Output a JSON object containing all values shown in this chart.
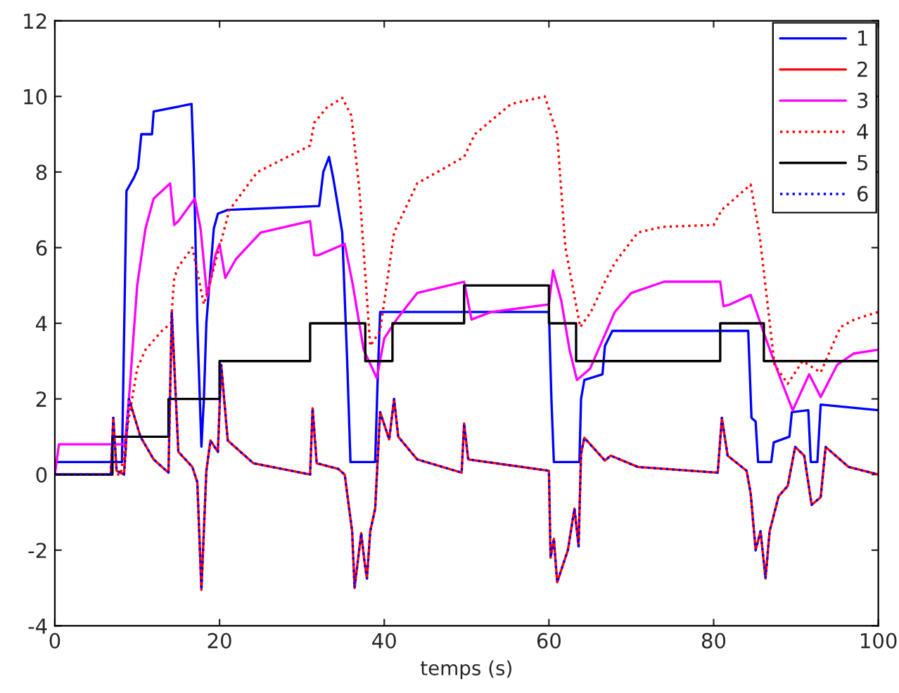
{
  "chart_data": {
    "type": "line",
    "xlabel": "temps (s)",
    "xlim": [
      0,
      100
    ],
    "xticks": [
      0,
      20,
      40,
      60,
      80,
      100
    ],
    "ylim": [
      -4,
      12
    ],
    "yticks": [
      -4,
      -2,
      0,
      2,
      4,
      6,
      8,
      10,
      12
    ],
    "grid": false,
    "legend": "top right",
    "series": [
      {
        "name": "1",
        "color": "#0000ff",
        "line_style": "solid",
        "x": [
          0,
          8.15,
          8.7,
          9.6,
          10.1,
          10.5,
          11.8,
          12.0,
          16.6,
          16.9,
          17.3,
          17.8,
          18.1,
          18.4,
          19.3,
          19.8,
          21,
          32.1,
          32.6,
          33.3,
          33.8,
          34.3,
          34.9,
          35.5,
          35.9,
          38.9,
          39.2,
          39.5,
          60,
          60.3,
          60.6,
          63.7,
          63.9,
          64.3,
          66.5,
          66.8,
          67.7,
          84.2,
          84.6,
          85.1,
          85.4,
          87.0,
          87.3,
          89.2,
          89.5,
          91.5,
          91.8,
          92.6,
          93.0,
          100
        ],
        "values": [
          0.33,
          0.33,
          7.5,
          7.85,
          8.1,
          9.0,
          9.0,
          9.6,
          9.8,
          8.0,
          4.0,
          0.74,
          2.0,
          4.0,
          6.5,
          6.9,
          7.0,
          7.1,
          8.0,
          8.4,
          7.85,
          7.2,
          6.4,
          3.0,
          0.33,
          0.33,
          2.5,
          4.3,
          4.3,
          2.0,
          0.33,
          0.33,
          2.0,
          2.5,
          2.65,
          3.4,
          3.8,
          3.8,
          1.5,
          1.4,
          0.33,
          0.33,
          0.85,
          1.0,
          1.65,
          1.7,
          0.33,
          0.33,
          1.85,
          1.7
        ]
      },
      {
        "name": "2",
        "color": "#ff0000",
        "line_style": "solid",
        "x": [
          0,
          6.8,
          7.1,
          7.5,
          8.4,
          9.0,
          10.4,
          12,
          13.8,
          14.2,
          15.0,
          16.7,
          17.3,
          17.8,
          18.4,
          18.9,
          19.8,
          20.2,
          21,
          24.1,
          31,
          31.3,
          31.8,
          34.4,
          35.2,
          36.1,
          36.4,
          37.2,
          37.6,
          37.9,
          38.3,
          38.9,
          39.5,
          40.6,
          41.2,
          41.7,
          44,
          49.4,
          49.7,
          50.2,
          60,
          60.2,
          60.6,
          61,
          62.3,
          63.1,
          63.6,
          63.9,
          64.3,
          66.8,
          67.5,
          70.8,
          80.5,
          81,
          81.7,
          84,
          84.5,
          85.1,
          85.7,
          86.3,
          86.8,
          87.9,
          89,
          89.9,
          91,
          91.9,
          93,
          93.6,
          96.4,
          100
        ],
        "values": [
          0,
          0,
          1.5,
          0.1,
          0,
          2.0,
          1.0,
          0.4,
          0.05,
          4.3,
          0.6,
          0.2,
          -0.2,
          -3.05,
          0.1,
          0.9,
          0.6,
          2.9,
          0.9,
          0.3,
          0,
          1.75,
          0.3,
          0.15,
          0,
          -1.5,
          -3.0,
          -1.55,
          -2.3,
          -2.75,
          -1.5,
          -0.9,
          1.65,
          0.93,
          2.0,
          1.0,
          0.4,
          0.05,
          1.35,
          0.4,
          0.1,
          -2.2,
          -1.7,
          -2.85,
          -2.0,
          -0.9,
          -1.9,
          0.55,
          0.97,
          0.37,
          0.5,
          0.2,
          0.05,
          1.5,
          0.5,
          0.1,
          -0.5,
          -2.0,
          -1.5,
          -2.75,
          -1.5,
          -0.57,
          -0.3,
          0.73,
          0.5,
          -0.8,
          -0.6,
          0.73,
          0.2,
          0
        ]
      },
      {
        "name": "3",
        "color": "#ff00ff",
        "line_style": "solid",
        "x": [
          0,
          0.5,
          8.5,
          9,
          10,
          11,
          12,
          14,
          14.5,
          15,
          17,
          17.7,
          18.5,
          19.5,
          20,
          20.7,
          22,
          25,
          31,
          31.5,
          32,
          35.2,
          36.2,
          37.5,
          39.1,
          40,
          41.5,
          44,
          49.7,
          50.6,
          53,
          60,
          60.5,
          61.5,
          62.5,
          63.4,
          65,
          68,
          70,
          74,
          80.8,
          81.2,
          82,
          84.5,
          86,
          88,
          89.6,
          91.6,
          93.0,
          95,
          97,
          100
        ],
        "values": [
          0,
          0.8,
          0.8,
          2.0,
          5.0,
          6.5,
          7.3,
          7.7,
          6.6,
          6.7,
          7.3,
          6.5,
          4.7,
          5.8,
          6.1,
          5.2,
          5.7,
          6.4,
          6.7,
          5.8,
          5.8,
          6.1,
          5.0,
          3.3,
          2.55,
          3.6,
          4.1,
          4.8,
          5.1,
          4.1,
          4.3,
          4.5,
          5.4,
          4.6,
          3.3,
          2.5,
          2.8,
          4.3,
          4.8,
          5.1,
          5.1,
          4.45,
          4.5,
          4.75,
          3.8,
          2.6,
          1.7,
          2.65,
          2.05,
          2.9,
          3.2,
          3.3
        ]
      },
      {
        "name": "4",
        "color": "#ff0000",
        "line_style": "dotted",
        "x": [
          0,
          8,
          9,
          10,
          11,
          13,
          14.1,
          14.5,
          15,
          16.7,
          18.1,
          19,
          21.2,
          24.6,
          31,
          31.5,
          33,
          34.9,
          36,
          37,
          38.3,
          39.5,
          41.2,
          44,
          49.7,
          51,
          55.4,
          59.5,
          61,
          62,
          63.8,
          65.1,
          66.8,
          68,
          70.8,
          73.7,
          80,
          81,
          84.5,
          85.6,
          87.4,
          89,
          90.8,
          93,
          95.4,
          97.1,
          100
        ],
        "values": [
          0,
          0,
          1.5,
          2.8,
          3.3,
          3.8,
          4.0,
          5.2,
          5.5,
          6.0,
          4.5,
          5.2,
          7.0,
          8.0,
          8.7,
          9.3,
          9.7,
          9.96,
          9.5,
          7.5,
          3.4,
          3.8,
          6.4,
          7.7,
          8.4,
          9.0,
          9.8,
          10.0,
          9.0,
          6.0,
          3.9,
          4.3,
          5.1,
          5.6,
          6.4,
          6.55,
          6.6,
          7.0,
          7.67,
          6.3,
          2.9,
          2.4,
          3.0,
          2.7,
          3.9,
          4.1,
          4.3
        ]
      },
      {
        "name": "5",
        "color": "#000000",
        "line_style": "solid",
        "x": [
          0,
          7.0,
          7.0,
          13.8,
          13.8,
          20.0,
          20.0,
          31,
          31,
          37.7,
          37.7,
          41.0,
          41.0,
          49.7,
          49.7,
          60,
          60,
          63.3,
          63.3,
          80.8,
          80.8,
          86.1,
          86.1,
          100
        ],
        "values": [
          0,
          0,
          1,
          1,
          2,
          2,
          3,
          3,
          4,
          4,
          3,
          3,
          4,
          4,
          5,
          5,
          4,
          4,
          3,
          3,
          4,
          4,
          3,
          3
        ]
      },
      {
        "name": "6",
        "color": "#0000ff",
        "line_style": "dotted",
        "x": [
          0,
          6.8,
          7.1,
          7.5,
          8.4,
          9.0,
          10.4,
          12,
          13.8,
          14.2,
          15.0,
          16.7,
          17.3,
          17.8,
          18.4,
          18.9,
          19.8,
          20.2,
          21,
          24.1,
          31,
          31.3,
          31.8,
          34.4,
          35.2,
          36.1,
          36.4,
          37.2,
          37.6,
          37.9,
          38.3,
          38.9,
          39.5,
          40.6,
          41.2,
          41.7,
          44,
          49.4,
          49.7,
          50.2,
          60,
          60.2,
          60.6,
          61,
          62.3,
          63.1,
          63.6,
          63.9,
          64.3,
          66.8,
          67.5,
          70.8,
          80.5,
          81,
          81.7,
          84,
          84.5,
          85.1,
          85.7,
          86.3,
          86.8,
          87.9,
          89,
          89.9,
          91,
          91.9,
          93,
          93.6,
          96.4,
          100
        ],
        "values": [
          0,
          0,
          1.5,
          0.1,
          0,
          2.0,
          1.0,
          0.4,
          0.05,
          4.3,
          0.6,
          0.2,
          -0.2,
          -3.05,
          0.1,
          0.9,
          0.6,
          2.9,
          0.9,
          0.3,
          0,
          1.75,
          0.3,
          0.15,
          0,
          -1.5,
          -3.0,
          -1.55,
          -2.3,
          -2.75,
          -1.5,
          -0.9,
          1.65,
          0.93,
          2.0,
          1.0,
          0.4,
          0.05,
          1.35,
          0.4,
          0.1,
          -2.2,
          -1.7,
          -2.85,
          -2.0,
          -0.9,
          -1.9,
          0.55,
          0.97,
          0.37,
          0.5,
          0.2,
          0.05,
          1.5,
          0.5,
          0.1,
          -0.5,
          -2.0,
          -1.5,
          -2.75,
          -1.5,
          -0.57,
          -0.3,
          0.73,
          0.5,
          -0.8,
          -0.6,
          0.73,
          0.2,
          0
        ]
      }
    ]
  }
}
